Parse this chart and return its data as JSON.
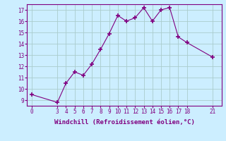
{
  "x": [
    0,
    3,
    4,
    5,
    6,
    7,
    8,
    9,
    10,
    11,
    12,
    13,
    14,
    15,
    16,
    17,
    18,
    21
  ],
  "y": [
    9.5,
    8.8,
    10.5,
    11.5,
    11.2,
    12.2,
    13.5,
    14.9,
    16.5,
    16.0,
    16.3,
    17.2,
    16.0,
    17.0,
    17.2,
    14.6,
    14.1,
    12.8
  ],
  "xticks": [
    0,
    3,
    4,
    5,
    6,
    7,
    8,
    9,
    10,
    11,
    12,
    13,
    14,
    15,
    16,
    17,
    18,
    21
  ],
  "yticks": [
    9,
    10,
    11,
    12,
    13,
    14,
    15,
    16,
    17
  ],
  "ylim": [
    8.5,
    17.5
  ],
  "xlim": [
    -0.5,
    22
  ],
  "xlabel": "Windchill (Refroidissement éolien,°C)",
  "line_color": "#800080",
  "marker": "+",
  "marker_size": 4,
  "bg_color": "#cceeff",
  "grid_color": "#aacccc",
  "label_fontsize": 5.5,
  "xlabel_fontsize": 6.5
}
